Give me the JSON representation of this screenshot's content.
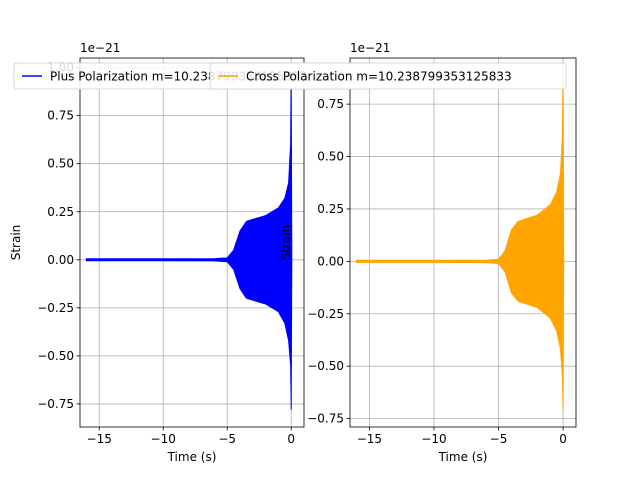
{
  "chart_data": [
    {
      "type": "line",
      "xlabel": "Time (s)",
      "ylabel": "Strain",
      "offset_text": "1e−21",
      "grid": true,
      "xlim": [
        -16.5,
        1.0
      ],
      "ylim": [
        -0.87,
        1.05
      ],
      "xticks": [
        -15,
        -10,
        -5,
        0
      ],
      "xtick_labels": [
        "−15",
        "−10",
        "−5",
        "0"
      ],
      "yticks": [
        -0.75,
        -0.5,
        -0.25,
        0.0,
        0.25,
        0.5,
        0.75,
        1.0
      ],
      "ytick_labels": [
        "−0.75",
        "−0.50",
        "−0.25",
        "0.00",
        "0.25",
        "0.50",
        "0.75",
        "1.00"
      ],
      "legend_loc": "upper center",
      "series": [
        {
          "name": "Plus Polarization m=10.238799353125833",
          "color": "#0000ff",
          "x": [
            -16.0,
            -10.0,
            -6.0,
            -5.0,
            -4.5,
            -4.0,
            -3.5,
            -3.0,
            -2.0,
            -1.0,
            -0.5,
            -0.2,
            -0.05,
            0.0,
            0.05
          ],
          "y_upper": [
            0.005,
            0.005,
            0.006,
            0.01,
            0.05,
            0.15,
            0.2,
            0.21,
            0.23,
            0.27,
            0.32,
            0.4,
            0.6,
            1.0,
            0.005
          ],
          "y_lower": [
            -0.005,
            -0.005,
            -0.006,
            -0.01,
            -0.05,
            -0.15,
            -0.2,
            -0.21,
            -0.23,
            -0.27,
            -0.33,
            -0.42,
            -0.55,
            -0.78,
            -0.005
          ]
        }
      ]
    },
    {
      "type": "line",
      "xlabel": "Time (s)",
      "ylabel": "Strain",
      "offset_text": "1e−21",
      "grid": true,
      "xlim": [
        -16.5,
        1.0
      ],
      "ylim": [
        -0.79,
        0.97
      ],
      "xticks": [
        -15,
        -10,
        -5,
        0
      ],
      "xtick_labels": [
        "−15",
        "−10",
        "−5",
        "0"
      ],
      "yticks": [
        -0.75,
        -0.5,
        -0.25,
        0.0,
        0.25,
        0.5,
        0.75
      ],
      "ytick_labels": [
        "−0.75",
        "−0.50",
        "−0.25",
        "0.00",
        "0.25",
        "0.50",
        "0.75"
      ],
      "legend_loc": "upper center",
      "series": [
        {
          "name": "Cross Polarization m=10.238799353125833",
          "color": "#ffa500",
          "x": [
            -16.0,
            -10.0,
            -6.0,
            -5.0,
            -4.5,
            -4.0,
            -3.5,
            -3.0,
            -2.0,
            -1.0,
            -0.5,
            -0.2,
            -0.05,
            0.0,
            0.05
          ],
          "y_upper": [
            0.005,
            0.005,
            0.006,
            0.01,
            0.05,
            0.15,
            0.19,
            0.2,
            0.22,
            0.27,
            0.33,
            0.42,
            0.6,
            0.95,
            0.005
          ],
          "y_lower": [
            -0.005,
            -0.005,
            -0.006,
            -0.01,
            -0.05,
            -0.15,
            -0.19,
            -0.2,
            -0.22,
            -0.27,
            -0.33,
            -0.42,
            -0.55,
            -0.71,
            -0.005
          ]
        }
      ]
    }
  ]
}
